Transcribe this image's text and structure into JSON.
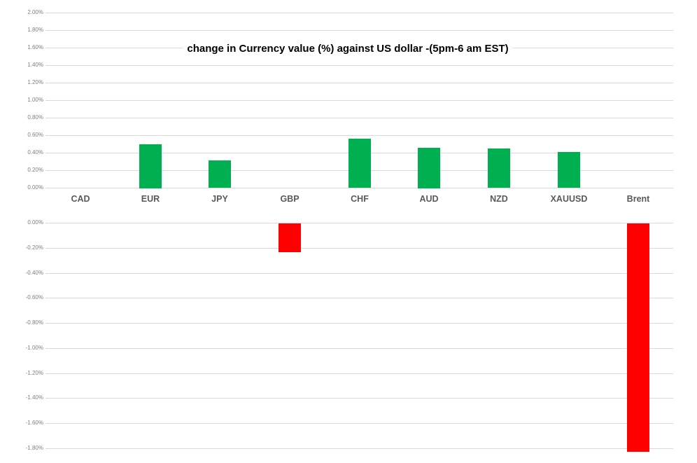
{
  "title": "change in Currency value (%)  against US dollar -(5pm-6 am EST)",
  "colors": {
    "positive_bar": "#00B050",
    "negative_bar": "#FF0000",
    "gridline": "#D9D9D9",
    "tick_label": "#7F7F7F",
    "category_label": "#595959",
    "title": "#000000",
    "background": "#FFFFFF"
  },
  "chart_data": {
    "type": "bar",
    "title": "change in Currency value (%)  against US dollar -(5pm-6 am EST)",
    "categories": [
      "CAD",
      "EUR",
      "JPY",
      "GBP",
      "CHF",
      "AUD",
      "NZD",
      "XAUUSD",
      "Brent"
    ],
    "values": [
      0.0,
      0.5,
      0.31,
      -0.23,
      0.56,
      0.46,
      0.45,
      0.41,
      -1.82
    ],
    "xlabel": "",
    "ylabel": "",
    "grid": true,
    "legend": false,
    "upper_axis": {
      "range": [
        0.0,
        2.0
      ],
      "tick_step": 0.2,
      "ticks": [
        "2.00%",
        "1.80%",
        "1.60%",
        "1.40%",
        "1.20%",
        "1.00%",
        "0.80%",
        "0.60%",
        "0.40%",
        "0.20%",
        "0.00%"
      ]
    },
    "lower_axis": {
      "range": [
        -1.8,
        0.0
      ],
      "tick_step": 0.2,
      "ticks": [
        "0.00%",
        "-0.20%",
        "-0.40%",
        "-0.60%",
        "-0.80%",
        "-1.00%",
        "-1.20%",
        "-1.40%",
        "-1.60%",
        "-1.80%"
      ]
    }
  }
}
